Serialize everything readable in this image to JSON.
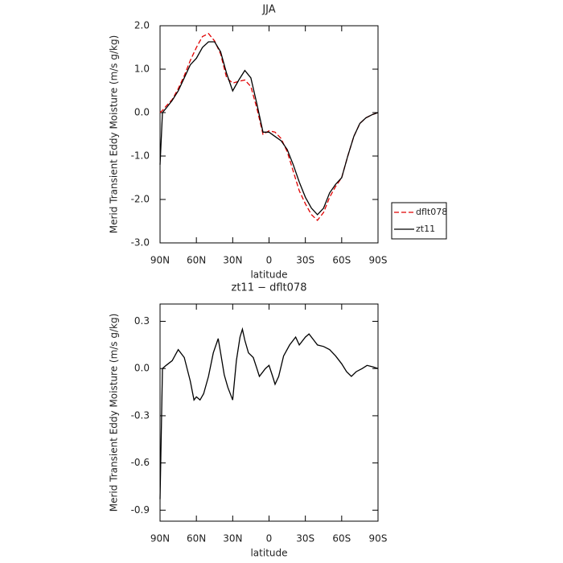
{
  "chart_data": [
    {
      "type": "line",
      "title": "JJA",
      "xlabel": "latitude",
      "ylabel": "Merid Transient Eddy Moisture (m/s g/kg)",
      "x": [
        90,
        88,
        85,
        80,
        75,
        70,
        65,
        60,
        55,
        50,
        45,
        40,
        35,
        30,
        25,
        20,
        15,
        10,
        5,
        0,
        -5,
        -10,
        -15,
        -20,
        -25,
        -30,
        -35,
        -40,
        -45,
        -50,
        -55,
        -60,
        -65,
        -70,
        -75,
        -80,
        -85,
        -90
      ],
      "series": [
        {
          "name": "dflt078",
          "color": "#e00000",
          "dashed": true,
          "values": [
            0.0,
            0.05,
            0.15,
            0.3,
            0.55,
            0.85,
            1.2,
            1.5,
            1.75,
            1.82,
            1.65,
            1.35,
            0.8,
            0.68,
            0.72,
            0.75,
            0.6,
            0.1,
            -0.5,
            -0.42,
            -0.45,
            -0.6,
            -0.9,
            -1.35,
            -1.8,
            -2.1,
            -2.35,
            -2.48,
            -2.3,
            -1.95,
            -1.7,
            -1.5,
            -1.0,
            -0.55,
            -0.25,
            -0.12,
            -0.05,
            0.0
          ]
        },
        {
          "name": "zt11",
          "color": "#000000",
          "dashed": false,
          "values": [
            -1.2,
            0.0,
            0.1,
            0.28,
            0.5,
            0.8,
            1.1,
            1.25,
            1.5,
            1.63,
            1.63,
            1.4,
            0.9,
            0.5,
            0.75,
            0.97,
            0.8,
            0.2,
            -0.45,
            -0.45,
            -0.55,
            -0.65,
            -0.85,
            -1.2,
            -1.6,
            -1.95,
            -2.2,
            -2.35,
            -2.2,
            -1.85,
            -1.65,
            -1.5,
            -1.0,
            -0.55,
            -0.25,
            -0.12,
            -0.05,
            0.0
          ]
        }
      ],
      "xlim": [
        90,
        -90
      ],
      "ylim": [
        -3,
        2
      ],
      "xticks": [
        {
          "value": 90,
          "label": "90N"
        },
        {
          "value": 60,
          "label": "60N"
        },
        {
          "value": 30,
          "label": "30N"
        },
        0,
        {
          "value": -30,
          "label": "30S"
        },
        {
          "value": -60,
          "label": "60S"
        },
        {
          "value": -90,
          "label": "90S"
        }
      ],
      "yticks": [
        {
          "value": 2,
          "label": "2.0"
        },
        {
          "value": 1,
          "label": "1.0"
        },
        {
          "value": 0,
          "label": "0.0"
        },
        {
          "value": -1,
          "label": "-1.0"
        },
        {
          "value": -2,
          "label": "-2.0"
        },
        {
          "value": -3,
          "label": "-3.0"
        }
      ],
      "legend": "right"
    },
    {
      "type": "line",
      "title": "zt11 − dflt078",
      "xlabel": "latitude",
      "ylabel": "Merid Transient Eddy Moisture (m/s g/kg)",
      "x": [
        90,
        88,
        85,
        80,
        75,
        70,
        65,
        62,
        60,
        57,
        54,
        50,
        46,
        42,
        40,
        37,
        34,
        30,
        27,
        24,
        22,
        20,
        17,
        13,
        10,
        8,
        3,
        0,
        -3,
        -5,
        -8,
        -12,
        -17,
        -22,
        -25,
        -30,
        -33,
        -37,
        -40,
        -45,
        -50,
        -55,
        -60,
        -64,
        -68,
        -72,
        -77,
        -81,
        -86,
        -90
      ],
      "series": [
        {
          "color": "#000000",
          "dashed": false,
          "values": [
            -0.83,
            0.0,
            0.02,
            0.05,
            0.12,
            0.07,
            -0.08,
            -0.2,
            -0.18,
            -0.2,
            -0.16,
            -0.05,
            0.1,
            0.19,
            0.1,
            -0.04,
            -0.12,
            -0.2,
            0.05,
            0.2,
            0.25,
            0.18,
            0.1,
            0.07,
            0.0,
            -0.05,
            0.0,
            0.02,
            -0.05,
            -0.1,
            -0.05,
            0.08,
            0.15,
            0.2,
            0.15,
            0.2,
            0.22,
            0.18,
            0.15,
            0.14,
            0.12,
            0.08,
            0.03,
            -0.02,
            -0.05,
            -0.02,
            0.0,
            0.02,
            0.01,
            0.0
          ]
        }
      ],
      "xlim": [
        90,
        -90
      ],
      "ylim": [
        -0.97,
        0.41
      ],
      "xticks": [
        {
          "value": 90,
          "label": "90N"
        },
        {
          "value": 60,
          "label": "60N"
        },
        {
          "value": 30,
          "label": "30N"
        },
        0,
        {
          "value": -30,
          "label": "30S"
        },
        {
          "value": -60,
          "label": "60S"
        },
        {
          "value": -90,
          "label": "90S"
        }
      ],
      "yticks": [
        0.3,
        {
          "value": 0,
          "label": "0.0"
        },
        -0.3,
        -0.6,
        -0.9
      ]
    }
  ]
}
